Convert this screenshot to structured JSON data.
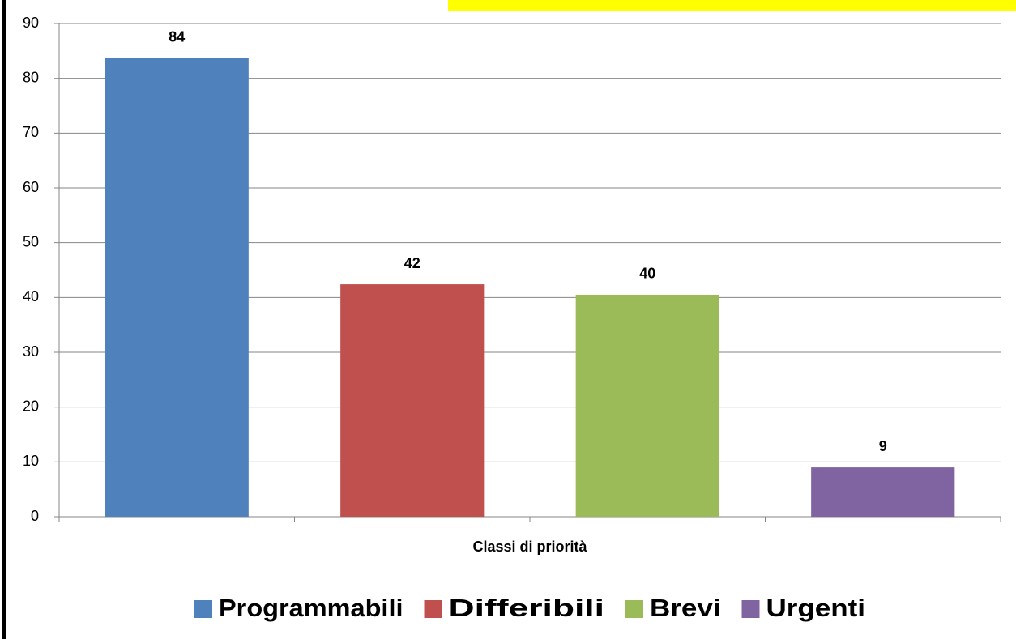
{
  "chart_data": {
    "type": "bar",
    "x_label": "Classi di priorità",
    "categories": [
      "Programmabili",
      "Differibili",
      "Brevi",
      "Urgenti"
    ],
    "values": [
      83.7,
      42.4,
      40.5,
      9
    ],
    "value_labels": [
      "84",
      "42",
      "40",
      "9"
    ],
    "colors": [
      "#4f81bd",
      "#c0504d",
      "#9bbb59",
      "#8064a2"
    ],
    "ylim": [
      0,
      90
    ],
    "yticks": [
      0,
      10,
      20,
      30,
      40,
      50,
      60,
      70,
      80,
      90
    ],
    "grid": true,
    "legend": "bottom"
  }
}
